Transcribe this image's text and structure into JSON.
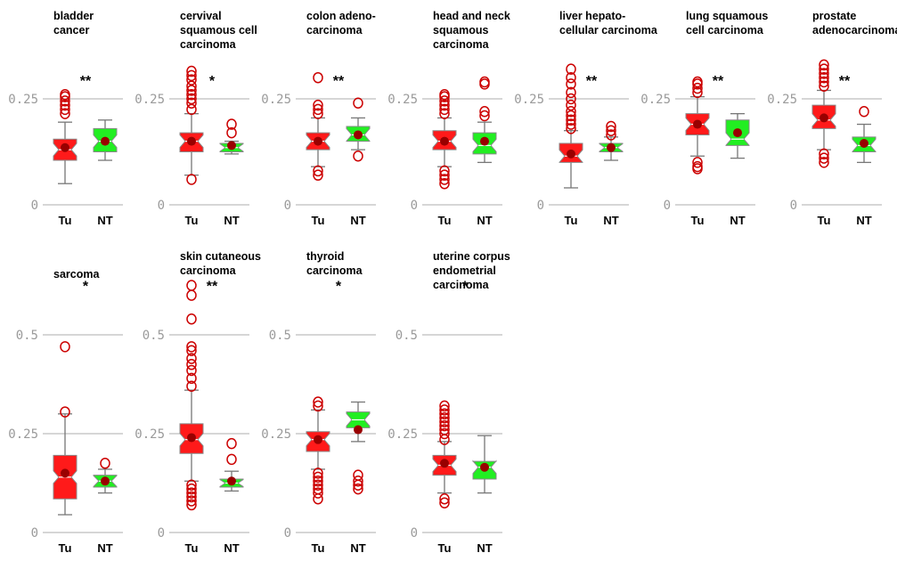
{
  "colors": {
    "tumor": "#ff1a1a",
    "normal": "#22ee22",
    "mean_marker": "#990000",
    "outlier": "#cc0000",
    "grid": "#c8c8c8",
    "tick_text": "#9a9a9a"
  },
  "chart_data": [
    {
      "type": "box",
      "title": [
        "bladder",
        "cancer"
      ],
      "categories": [
        "Tu",
        "NT"
      ],
      "ylim": [
        0,
        0.29
      ],
      "yticks": [
        0,
        0.25
      ],
      "ytick_labels": [
        "0",
        "0.25"
      ],
      "significance": "**",
      "series": [
        {
          "name": "Tu",
          "whisker_low": 0.05,
          "q1": 0.105,
          "median": 0.13,
          "q3": 0.155,
          "whisker_high": 0.195,
          "mean": 0.135,
          "outliers": [
            0.215,
            0.225,
            0.235,
            0.245,
            0.255,
            0.26
          ]
        },
        {
          "name": "NT",
          "whisker_low": 0.105,
          "q1": 0.125,
          "median": 0.15,
          "q3": 0.18,
          "whisker_high": 0.2,
          "mean": 0.15,
          "outliers": []
        }
      ]
    },
    {
      "type": "box",
      "title": [
        "cervival",
        "squamous  cell",
        "carcinoma"
      ],
      "categories": [
        "Tu",
        "NT"
      ],
      "ylim": [
        0,
        0.29
      ],
      "yticks": [
        0,
        0.25
      ],
      "ytick_labels": [
        "0",
        "0.25"
      ],
      "significance": "*",
      "series": [
        {
          "name": "Tu",
          "whisker_low": 0.07,
          "q1": 0.125,
          "median": 0.15,
          "q3": 0.17,
          "whisker_high": 0.215,
          "mean": 0.15,
          "outliers": [
            0.06,
            0.225,
            0.24,
            0.25,
            0.26,
            0.27,
            0.28,
            0.295,
            0.305,
            0.315
          ]
        },
        {
          "name": "NT",
          "whisker_low": 0.12,
          "q1": 0.125,
          "median": 0.135,
          "q3": 0.145,
          "whisker_high": 0.15,
          "mean": 0.14,
          "outliers": [
            0.17,
            0.19
          ]
        }
      ]
    },
    {
      "type": "box",
      "title": [
        "colon adeno-",
        "carcinoma"
      ],
      "categories": [
        "Tu",
        "NT"
      ],
      "ylim": [
        0,
        0.29
      ],
      "yticks": [
        0,
        0.25
      ],
      "ytick_labels": [
        "0",
        "0.25"
      ],
      "significance": "**",
      "series": [
        {
          "name": "Tu",
          "whisker_low": 0.09,
          "q1": 0.13,
          "median": 0.15,
          "q3": 0.17,
          "whisker_high": 0.205,
          "mean": 0.15,
          "outliers": [
            0.07,
            0.08,
            0.215,
            0.225,
            0.235,
            0.3
          ]
        },
        {
          "name": "NT",
          "whisker_low": 0.13,
          "q1": 0.15,
          "median": 0.165,
          "q3": 0.185,
          "whisker_high": 0.205,
          "mean": 0.165,
          "outliers": [
            0.115,
            0.24
          ]
        }
      ]
    },
    {
      "type": "box",
      "title": [
        "head and neck",
        "squamous",
        "carcinoma"
      ],
      "categories": [
        "Tu",
        "NT"
      ],
      "ylim": [
        0,
        0.29
      ],
      "yticks": [
        0,
        0.25
      ],
      "ytick_labels": [
        "0",
        "0.25"
      ],
      "significance": "",
      "series": [
        {
          "name": "Tu",
          "whisker_low": 0.09,
          "q1": 0.13,
          "median": 0.15,
          "q3": 0.175,
          "whisker_high": 0.205,
          "mean": 0.15,
          "outliers": [
            0.05,
            0.06,
            0.07,
            0.08,
            0.215,
            0.225,
            0.235,
            0.245,
            0.255,
            0.26
          ]
        },
        {
          "name": "NT",
          "whisker_low": 0.1,
          "q1": 0.12,
          "median": 0.14,
          "q3": 0.17,
          "whisker_high": 0.195,
          "mean": 0.15,
          "outliers": [
            0.21,
            0.22,
            0.285,
            0.29
          ]
        }
      ]
    },
    {
      "type": "box",
      "title": [
        "liver hepato-",
        "cellular carcinoma"
      ],
      "categories": [
        "Tu",
        "NT"
      ],
      "ylim": [
        0,
        0.29
      ],
      "yticks": [
        0,
        0.25
      ],
      "ytick_labels": [
        "0",
        "0.25"
      ],
      "significance": "**",
      "series": [
        {
          "name": "Tu",
          "whisker_low": 0.04,
          "q1": 0.1,
          "median": 0.115,
          "q3": 0.145,
          "whisker_high": 0.175,
          "mean": 0.12,
          "outliers": [
            0.18,
            0.19,
            0.2,
            0.21,
            0.22,
            0.235,
            0.25,
            0.265,
            0.285,
            0.3,
            0.32
          ]
        },
        {
          "name": "NT",
          "whisker_low": 0.105,
          "q1": 0.125,
          "median": 0.135,
          "q3": 0.145,
          "whisker_high": 0.16,
          "mean": 0.135,
          "outliers": [
            0.165,
            0.175,
            0.185
          ]
        }
      ]
    },
    {
      "type": "box",
      "title": [
        "lung squamous",
        "cell carcinoma"
      ],
      "categories": [
        "Tu",
        "NT"
      ],
      "ylim": [
        0,
        0.29
      ],
      "yticks": [
        0,
        0.25
      ],
      "ytick_labels": [
        "0",
        "0.25"
      ],
      "significance": "**",
      "series": [
        {
          "name": "Tu",
          "whisker_low": 0.115,
          "q1": 0.165,
          "median": 0.19,
          "q3": 0.215,
          "whisker_high": 0.255,
          "mean": 0.19,
          "outliers": [
            0.085,
            0.09,
            0.1,
            0.265,
            0.275,
            0.285,
            0.29
          ]
        },
        {
          "name": "NT",
          "whisker_low": 0.11,
          "q1": 0.14,
          "median": 0.155,
          "q3": 0.2,
          "whisker_high": 0.215,
          "mean": 0.17,
          "outliers": []
        }
      ]
    },
    {
      "type": "box",
      "title": [
        "prostate",
        "adenocarcinoma"
      ],
      "categories": [
        "Tu",
        "NT"
      ],
      "ylim": [
        0,
        0.29
      ],
      "yticks": [
        0,
        0.25
      ],
      "ytick_labels": [
        "0",
        "0.25"
      ],
      "significance": "**",
      "series": [
        {
          "name": "Tu",
          "whisker_low": 0.13,
          "q1": 0.18,
          "median": 0.2,
          "q3": 0.235,
          "whisker_high": 0.27,
          "mean": 0.205,
          "outliers": [
            0.1,
            0.11,
            0.12,
            0.28,
            0.29,
            0.3,
            0.31,
            0.32,
            0.33
          ]
        },
        {
          "name": "NT",
          "whisker_low": 0.1,
          "q1": 0.125,
          "median": 0.14,
          "q3": 0.16,
          "whisker_high": 0.19,
          "mean": 0.145,
          "outliers": [
            0.22
          ]
        }
      ]
    },
    {
      "type": "box",
      "title": [
        "sarcoma"
      ],
      "categories": [
        "Tu",
        "NT"
      ],
      "ylim": [
        0,
        0.62
      ],
      "yticks": [
        0,
        0.25,
        0.5
      ],
      "ytick_labels": [
        "0",
        "0.25",
        "0.5"
      ],
      "significance": "*",
      "series": [
        {
          "name": "Tu",
          "whisker_low": 0.045,
          "q1": 0.085,
          "median": 0.14,
          "q3": 0.195,
          "whisker_high": 0.3,
          "mean": 0.15,
          "outliers": [
            0.305,
            0.47
          ]
        },
        {
          "name": "NT",
          "whisker_low": 0.1,
          "q1": 0.115,
          "median": 0.13,
          "q3": 0.145,
          "whisker_high": 0.16,
          "mean": 0.13,
          "outliers": [
            0.175
          ]
        }
      ]
    },
    {
      "type": "box",
      "title": [
        "skin cutaneous",
        "carcinoma"
      ],
      "categories": [
        "Tu",
        "NT"
      ],
      "ylim": [
        0,
        0.62
      ],
      "yticks": [
        0,
        0.25,
        0.5
      ],
      "ytick_labels": [
        "0",
        "0.25",
        "0.5"
      ],
      "significance": "**",
      "series": [
        {
          "name": "Tu",
          "whisker_low": 0.13,
          "q1": 0.2,
          "median": 0.235,
          "q3": 0.275,
          "whisker_high": 0.36,
          "mean": 0.24,
          "outliers": [
            0.07,
            0.08,
            0.09,
            0.1,
            0.11,
            0.12,
            0.37,
            0.39,
            0.41,
            0.425,
            0.44,
            0.46,
            0.47,
            0.54,
            0.6,
            0.625
          ]
        },
        {
          "name": "NT",
          "whisker_low": 0.105,
          "q1": 0.115,
          "median": 0.125,
          "q3": 0.135,
          "whisker_high": 0.155,
          "mean": 0.13,
          "outliers": [
            0.185,
            0.225
          ]
        }
      ]
    },
    {
      "type": "box",
      "title": [
        "thyroid",
        "carcinoma"
      ],
      "categories": [
        "Tu",
        "NT"
      ],
      "ylim": [
        0,
        0.62
      ],
      "yticks": [
        0,
        0.25,
        0.5
      ],
      "ytick_labels": [
        "0",
        "0.25",
        "0.5"
      ],
      "significance": "*",
      "series": [
        {
          "name": "Tu",
          "whisker_low": 0.16,
          "q1": 0.205,
          "median": 0.235,
          "q3": 0.255,
          "whisker_high": 0.31,
          "mean": 0.235,
          "outliers": [
            0.085,
            0.1,
            0.11,
            0.12,
            0.13,
            0.14,
            0.15,
            0.32,
            0.33
          ]
        },
        {
          "name": "NT",
          "whisker_low": 0.23,
          "q1": 0.265,
          "median": 0.285,
          "q3": 0.305,
          "whisker_high": 0.33,
          "mean": 0.26,
          "outliers": [
            0.11,
            0.12,
            0.13,
            0.145
          ]
        }
      ]
    },
    {
      "type": "box",
      "title": [
        "uterine corpus",
        "endometrial",
        "carcinoma"
      ],
      "categories": [
        "Tu",
        "NT"
      ],
      "ylim": [
        0,
        0.62
      ],
      "yticks": [
        0,
        0.25,
        0.5
      ],
      "ytick_labels": [
        "0",
        "0.25",
        "0.5"
      ],
      "significance": "*",
      "series": [
        {
          "name": "Tu",
          "whisker_low": 0.1,
          "q1": 0.145,
          "median": 0.17,
          "q3": 0.195,
          "whisker_high": 0.23,
          "mean": 0.175,
          "outliers": [
            0.075,
            0.085,
            0.235,
            0.25,
            0.26,
            0.27,
            0.28,
            0.29,
            0.3,
            0.31,
            0.32
          ]
        },
        {
          "name": "NT",
          "whisker_low": 0.1,
          "q1": 0.135,
          "median": 0.165,
          "q3": 0.18,
          "whisker_high": 0.245,
          "mean": 0.165,
          "outliers": []
        }
      ]
    }
  ]
}
